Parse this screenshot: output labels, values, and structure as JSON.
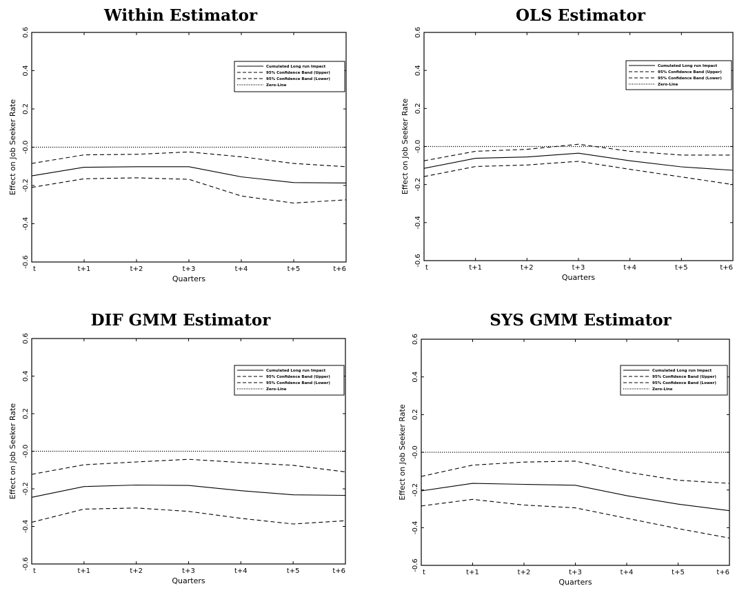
{
  "figure": {
    "panels": [
      {
        "title": "Within Estimator",
        "xlabel": "Quarters",
        "ylabel": "Effect on Job Seeker Rate"
      },
      {
        "title": "OLS Estimator",
        "xlabel": "Quarters",
        "ylabel": "Effect on Job Seeker Rate"
      },
      {
        "title": "DIF GMM Estimator",
        "xlabel": "Quarters",
        "ylabel": "Effect on Job Seeker Rate"
      },
      {
        "title": "SYS GMM Estimator",
        "xlabel": "Quarters",
        "ylabel": "Effect on Job Seeker Rate"
      }
    ]
  },
  "chart_data": [
    {
      "type": "line",
      "title": "Within Estimator",
      "xlabel": "Quarters",
      "ylabel": "Effect on Job Seeker Rate",
      "categories": [
        "t",
        "t+1",
        "t+2",
        "t+3",
        "t+4",
        "t+5",
        "t+6"
      ],
      "ylim": [
        -0.6,
        0.6
      ],
      "yticks": [
        "-0.6",
        "-0.4",
        "-0.2",
        "-0.0",
        "0.2",
        "0.4",
        "0.6"
      ],
      "grid": false,
      "legend_position": "top-right",
      "series": [
        {
          "name": "Cumulated Long run Impact",
          "style": "solid",
          "values": [
            -0.15,
            -0.105,
            -0.102,
            -0.102,
            -0.155,
            -0.185,
            -0.187
          ]
        },
        {
          "name": "95% Confidence Band (Upper)",
          "style": "dashed",
          "values": [
            -0.085,
            -0.04,
            -0.037,
            -0.025,
            -0.05,
            -0.085,
            -0.102
          ]
        },
        {
          "name": "95% Confidence Band (Lower)",
          "style": "dashed",
          "values": [
            -0.21,
            -0.165,
            -0.16,
            -0.168,
            -0.255,
            -0.292,
            -0.275
          ]
        },
        {
          "name": "Zero-Line",
          "style": "dotted",
          "values": [
            0,
            0,
            0,
            0,
            0,
            0,
            0
          ]
        }
      ]
    },
    {
      "type": "line",
      "title": "OLS Estimator",
      "xlabel": "Quarters",
      "ylabel": "Effect on Job Seeker Rate",
      "categories": [
        "t",
        "t+1",
        "t+2",
        "t+3",
        "t+4",
        "t+5",
        "t+6"
      ],
      "ylim": [
        -0.6,
        0.6
      ],
      "yticks": [
        "-0.6",
        "-0.4",
        "-0.2",
        "-0.0",
        "0.2",
        "0.4",
        "0.6"
      ],
      "grid": false,
      "legend_position": "top-right",
      "series": [
        {
          "name": "Cumulated Long run Impact",
          "style": "solid",
          "values": [
            -0.115,
            -0.062,
            -0.055,
            -0.035,
            -0.075,
            -0.107,
            -0.125
          ]
        },
        {
          "name": "95% Confidence Band (Upper)",
          "style": "dashed",
          "values": [
            -0.075,
            -0.025,
            -0.015,
            0.012,
            -0.025,
            -0.045,
            -0.045
          ]
        },
        {
          "name": "95% Confidence Band (Lower)",
          "style": "dashed",
          "values": [
            -0.158,
            -0.105,
            -0.097,
            -0.078,
            -0.12,
            -0.16,
            -0.2
          ]
        },
        {
          "name": "Zero-Line",
          "style": "dotted",
          "values": [
            0,
            0,
            0,
            0,
            0,
            0,
            0
          ]
        }
      ]
    },
    {
      "type": "line",
      "title": "DIF GMM Estimator",
      "xlabel": "Quarters",
      "ylabel": "Effect on Job Seeker Rate",
      "categories": [
        "t",
        "t+1",
        "t+2",
        "t+3",
        "t+4",
        "t+5",
        "t+6"
      ],
      "ylim": [
        -0.6,
        0.6
      ],
      "yticks": [
        "-0.6",
        "-0.4",
        "-0.2",
        "-0.0",
        "0.2",
        "0.4",
        "0.6"
      ],
      "grid": false,
      "legend_position": "top-right",
      "series": [
        {
          "name": "Cumulated Long run Impact",
          "style": "solid",
          "values": [
            -0.245,
            -0.188,
            -0.18,
            -0.182,
            -0.21,
            -0.232,
            -0.235
          ]
        },
        {
          "name": "95% Confidence Band (Upper)",
          "style": "dashed",
          "values": [
            -0.123,
            -0.072,
            -0.057,
            -0.043,
            -0.06,
            -0.075,
            -0.11
          ]
        },
        {
          "name": "95% Confidence Band (Lower)",
          "style": "dashed",
          "values": [
            -0.378,
            -0.308,
            -0.302,
            -0.32,
            -0.357,
            -0.387,
            -0.37
          ]
        },
        {
          "name": "Zero-Line",
          "style": "dotted",
          "values": [
            0,
            0,
            0,
            0,
            0,
            0,
            0
          ]
        }
      ]
    },
    {
      "type": "line",
      "title": "SYS GMM Estimator",
      "xlabel": "Quarters",
      "ylabel": "Effect on Job Seeker Rate",
      "categories": [
        "t",
        "t+1",
        "t+2",
        "t+3",
        "t+4",
        "t+5",
        "t+6"
      ],
      "ylim": [
        -0.6,
        0.6
      ],
      "yticks": [
        "-0.6",
        "-0.4",
        "-0.2",
        "-0.0",
        "0.2",
        "0.4",
        "0.6"
      ],
      "grid": false,
      "legend_position": "top-right",
      "series": [
        {
          "name": "Cumulated Long run Impact",
          "style": "solid",
          "values": [
            -0.205,
            -0.165,
            -0.17,
            -0.175,
            -0.23,
            -0.275,
            -0.31
          ]
        },
        {
          "name": "95% Confidence Band (Upper)",
          "style": "dashed",
          "values": [
            -0.128,
            -0.068,
            -0.052,
            -0.047,
            -0.105,
            -0.148,
            -0.165
          ]
        },
        {
          "name": "95% Confidence Band (Lower)",
          "style": "dashed",
          "values": [
            -0.285,
            -0.25,
            -0.28,
            -0.295,
            -0.35,
            -0.405,
            -0.455
          ]
        },
        {
          "name": "Zero-Line",
          "style": "dotted",
          "values": [
            0,
            0,
            0,
            0,
            0,
            0,
            0
          ]
        }
      ]
    }
  ]
}
